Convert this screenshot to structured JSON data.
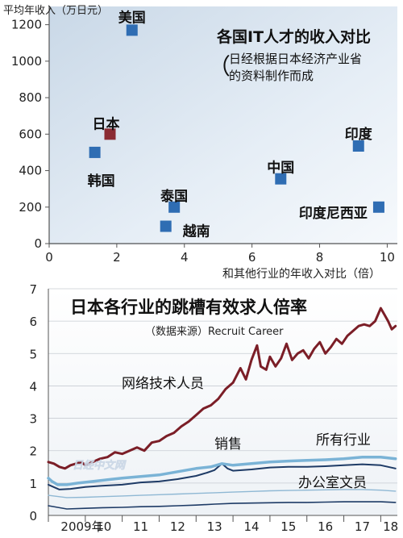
{
  "chart_data": [
    {
      "type": "scatter",
      "title": "各国IT人才的收入对比",
      "subtitle_open": "（",
      "subtitle_line1": "日经根据日本经济产业省",
      "subtitle_line2": "的资料制作而成",
      "ylabel": "平均年收入（万日元）",
      "xlabel": "和其他行业的年收入对比（倍）",
      "xlim": [
        0,
        10.3
      ],
      "ylim": [
        0,
        1300
      ],
      "xticks": [
        "0",
        "2",
        "4",
        "6",
        "8",
        "10"
      ],
      "yticks": [
        "0",
        "200",
        "400",
        "600",
        "800",
        "1000",
        "1200"
      ],
      "points": [
        {
          "label": "美国",
          "x": 2.45,
          "y": 1170,
          "color": "#2f6db3"
        },
        {
          "label": "日本",
          "x": 1.8,
          "y": 600,
          "color": "#8b2b33"
        },
        {
          "label": "韩国",
          "x": 1.35,
          "y": 500,
          "color": "#2f6db3"
        },
        {
          "label": "泰国",
          "x": 3.7,
          "y": 200,
          "color": "#2f6db3"
        },
        {
          "label": "越南",
          "x": 3.45,
          "y": 95,
          "color": "#2f6db3"
        },
        {
          "label": "中国",
          "x": 6.85,
          "y": 355,
          "color": "#2f6db3"
        },
        {
          "label": "印度",
          "x": 9.15,
          "y": 535,
          "color": "#2f6db3"
        },
        {
          "label": "印度尼西亚",
          "x": 9.75,
          "y": 200,
          "color": "#2f6db3"
        }
      ]
    },
    {
      "type": "line",
      "title": "日本各行业的跳槽有效求人倍率",
      "subtitle": "（数据来源）Recruit Career",
      "xlim": [
        2009.0,
        2018.45
      ],
      "ylim": [
        0,
        7
      ],
      "yticks": [
        "0",
        "1",
        "2",
        "3",
        "4",
        "5",
        "6",
        "7"
      ],
      "xticks": [
        "2009年",
        "10",
        "11",
        "12",
        "13",
        "14",
        "15",
        "16",
        "17",
        "18"
      ],
      "series": [
        {
          "name": "网络技术人员",
          "color": "#7b1e27",
          "width": 3,
          "points": [
            [
              2009.0,
              1.65
            ],
            [
              2009.15,
              1.6
            ],
            [
              2009.3,
              1.5
            ],
            [
              2009.45,
              1.45
            ],
            [
              2009.6,
              1.55
            ],
            [
              2009.75,
              1.6
            ],
            [
              2009.9,
              1.65
            ],
            [
              2010.0,
              1.55
            ],
            [
              2010.2,
              1.65
            ],
            [
              2010.4,
              1.75
            ],
            [
              2010.6,
              1.8
            ],
            [
              2010.8,
              1.95
            ],
            [
              2011.0,
              1.9
            ],
            [
              2011.2,
              2.0
            ],
            [
              2011.4,
              2.1
            ],
            [
              2011.6,
              2.0
            ],
            [
              2011.8,
              2.25
            ],
            [
              2012.0,
              2.3
            ],
            [
              2012.2,
              2.45
            ],
            [
              2012.4,
              2.55
            ],
            [
              2012.6,
              2.75
            ],
            [
              2012.8,
              2.9
            ],
            [
              2013.0,
              3.1
            ],
            [
              2013.2,
              3.3
            ],
            [
              2013.4,
              3.4
            ],
            [
              2013.6,
              3.6
            ],
            [
              2013.8,
              3.9
            ],
            [
              2014.0,
              4.1
            ],
            [
              2014.2,
              4.55
            ],
            [
              2014.35,
              4.2
            ],
            [
              2014.5,
              4.8
            ],
            [
              2014.65,
              5.25
            ],
            [
              2014.75,
              4.6
            ],
            [
              2014.9,
              4.5
            ],
            [
              2015.0,
              4.9
            ],
            [
              2015.15,
              4.6
            ],
            [
              2015.3,
              4.85
            ],
            [
              2015.45,
              5.3
            ],
            [
              2015.6,
              4.8
            ],
            [
              2015.75,
              5.0
            ],
            [
              2015.9,
              5.1
            ],
            [
              2016.05,
              4.85
            ],
            [
              2016.2,
              5.15
            ],
            [
              2016.35,
              5.35
            ],
            [
              2016.5,
              5.0
            ],
            [
              2016.65,
              5.2
            ],
            [
              2016.8,
              5.45
            ],
            [
              2016.95,
              5.3
            ],
            [
              2017.1,
              5.55
            ],
            [
              2017.25,
              5.7
            ],
            [
              2017.4,
              5.85
            ],
            [
              2017.55,
              5.9
            ],
            [
              2017.7,
              5.85
            ],
            [
              2017.85,
              6.0
            ],
            [
              2018.0,
              6.4
            ],
            [
              2018.1,
              6.2
            ],
            [
              2018.2,
              6.0
            ],
            [
              2018.3,
              5.75
            ],
            [
              2018.4,
              5.85
            ]
          ]
        },
        {
          "name": "销售",
          "color": "#1e3b66",
          "width": 2,
          "points": [
            [
              2009.0,
              0.95
            ],
            [
              2009.3,
              0.8
            ],
            [
              2009.6,
              0.82
            ],
            [
              2010.0,
              0.88
            ],
            [
              2010.5,
              0.92
            ],
            [
              2011.0,
              0.95
            ],
            [
              2011.5,
              1.02
            ],
            [
              2012.0,
              1.05
            ],
            [
              2012.5,
              1.12
            ],
            [
              2013.0,
              1.22
            ],
            [
              2013.3,
              1.32
            ],
            [
              2013.5,
              1.4
            ],
            [
              2013.7,
              1.6
            ],
            [
              2013.85,
              1.45
            ],
            [
              2014.0,
              1.38
            ],
            [
              2014.5,
              1.42
            ],
            [
              2015.0,
              1.48
            ],
            [
              2015.5,
              1.5
            ],
            [
              2016.0,
              1.5
            ],
            [
              2016.5,
              1.52
            ],
            [
              2017.0,
              1.55
            ],
            [
              2017.5,
              1.58
            ],
            [
              2018.0,
              1.55
            ],
            [
              2018.4,
              1.45
            ]
          ]
        },
        {
          "name": "所有行业",
          "color": "#7ab3d6",
          "width": 3.5,
          "points": [
            [
              2009.0,
              1.15
            ],
            [
              2009.1,
              1.05
            ],
            [
              2009.25,
              0.95
            ],
            [
              2009.5,
              0.95
            ],
            [
              2009.8,
              1.0
            ],
            [
              2010.2,
              1.05
            ],
            [
              2010.6,
              1.1
            ],
            [
              2011.0,
              1.15
            ],
            [
              2011.5,
              1.2
            ],
            [
              2012.0,
              1.25
            ],
            [
              2012.5,
              1.35
            ],
            [
              2013.0,
              1.45
            ],
            [
              2013.4,
              1.5
            ],
            [
              2013.7,
              1.6
            ],
            [
              2014.0,
              1.55
            ],
            [
              2014.5,
              1.6
            ],
            [
              2015.0,
              1.65
            ],
            [
              2015.5,
              1.68
            ],
            [
              2016.0,
              1.7
            ],
            [
              2016.5,
              1.72
            ],
            [
              2017.0,
              1.75
            ],
            [
              2017.5,
              1.8
            ],
            [
              2018.0,
              1.8
            ],
            [
              2018.4,
              1.75
            ]
          ]
        },
        {
          "name": "办公室文员",
          "color": "#1e3b66",
          "width": 1.6,
          "points": [
            [
              2009.0,
              0.3
            ],
            [
              2009.5,
              0.2
            ],
            [
              2010.0,
              0.22
            ],
            [
              2010.5,
              0.24
            ],
            [
              2011.0,
              0.25
            ],
            [
              2011.5,
              0.27
            ],
            [
              2012.0,
              0.28
            ],
            [
              2012.5,
              0.3
            ],
            [
              2013.0,
              0.32
            ],
            [
              2013.5,
              0.35
            ],
            [
              2014.0,
              0.37
            ],
            [
              2014.5,
              0.38
            ],
            [
              2015.0,
              0.39
            ],
            [
              2015.5,
              0.4
            ],
            [
              2016.0,
              0.4
            ],
            [
              2016.5,
              0.41
            ],
            [
              2017.0,
              0.42
            ],
            [
              2017.5,
              0.42
            ],
            [
              2018.0,
              0.42
            ],
            [
              2018.4,
              0.4
            ]
          ]
        },
        {
          "name": "",
          "color": "#8fb8d4",
          "width": 1.4,
          "points": [
            [
              2009.0,
              0.62
            ],
            [
              2009.5,
              0.55
            ],
            [
              2010.0,
              0.56
            ],
            [
              2010.5,
              0.58
            ],
            [
              2011.0,
              0.6
            ],
            [
              2011.5,
              0.62
            ],
            [
              2012.0,
              0.64
            ],
            [
              2012.5,
              0.66
            ],
            [
              2013.0,
              0.68
            ],
            [
              2013.5,
              0.7
            ],
            [
              2014.0,
              0.72
            ],
            [
              2014.5,
              0.74
            ],
            [
              2015.0,
              0.76
            ],
            [
              2015.5,
              0.77
            ],
            [
              2016.0,
              0.78
            ],
            [
              2016.5,
              0.79
            ],
            [
              2017.0,
              0.8
            ],
            [
              2017.5,
              0.8
            ],
            [
              2018.0,
              0.78
            ],
            [
              2018.4,
              0.75
            ]
          ]
        }
      ]
    }
  ],
  "watermark": "日经中文网"
}
